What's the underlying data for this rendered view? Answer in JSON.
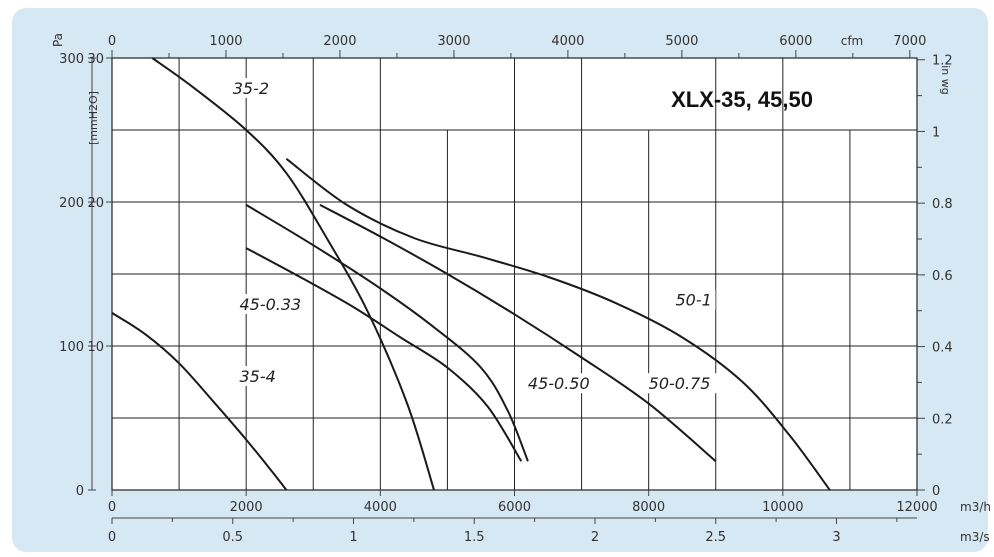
{
  "chart_data": {
    "type": "line",
    "title": "XLX-35, 45,50",
    "axes": {
      "left_primary": {
        "label": "Pa",
        "ticks": [
          "0",
          "100",
          "200",
          "300"
        ],
        "range": [
          0,
          300
        ]
      },
      "left_secondary": {
        "label": "[mmH2O]",
        "ticks": [
          "10",
          "20",
          "30"
        ],
        "range": [
          0,
          30
        ]
      },
      "right": {
        "label": "in wg",
        "ticks": [
          "0",
          "0.2",
          "0.4",
          "0.6",
          "0.8",
          "1",
          "1.2"
        ],
        "range": [
          0,
          1.2
        ]
      },
      "top": {
        "label": "cfm",
        "ticks": [
          "0",
          "1000",
          "2000",
          "3000",
          "4000",
          "5000",
          "6000",
          "7000"
        ],
        "range": [
          0,
          7000
        ]
      },
      "bottom": {
        "label": "m3/h",
        "ticks": [
          "0",
          "2000",
          "4000",
          "6000",
          "8000",
          "10000",
          "12000"
        ],
        "range": [
          0,
          12000
        ]
      },
      "bottom_secondary": {
        "label": "m3/s",
        "ticks": [
          "0",
          "0.5",
          "1",
          "1.5",
          "2",
          "2.5",
          "3"
        ],
        "range": [
          0,
          3.33
        ]
      }
    },
    "grid": true,
    "series": [
      {
        "name": "35-2",
        "label_at": [
          1800,
          275
        ],
        "x": [
          600,
          1200,
          2000,
          2600,
          3200,
          3800,
          4400,
          4800
        ],
        "y": [
          300,
          280,
          250,
          220,
          175,
          125,
          60,
          0
        ]
      },
      {
        "name": "35-4",
        "label_at": [
          1900,
          75
        ],
        "x": [
          0,
          500,
          1000,
          1500,
          2000,
          2400,
          2600
        ],
        "y": [
          123,
          108,
          88,
          62,
          35,
          12,
          0
        ]
      },
      {
        "name": "45-0.33",
        "label_at": [
          1900,
          125
        ],
        "x": [
          2000,
          2800,
          3600,
          4300,
          5000,
          5600,
          6100
        ],
        "y": [
          168,
          148,
          127,
          106,
          85,
          58,
          20
        ]
      },
      {
        "name": "45-0.50",
        "label_at": [
          6200,
          70
        ],
        "x": [
          2000,
          3000,
          4000,
          4800,
          5500,
          5900,
          6200
        ],
        "y": [
          198,
          170,
          140,
          113,
          85,
          55,
          20
        ]
      },
      {
        "name": "50-0.75",
        "label_at": [
          8000,
          70
        ],
        "x": [
          3100,
          4000,
          5000,
          6000,
          7000,
          8000,
          9000
        ],
        "y": [
          198,
          176,
          150,
          122,
          92,
          60,
          20
        ]
      },
      {
        "name": "50-1",
        "label_at": [
          8400,
          128
        ],
        "x": [
          2600,
          3500,
          4500,
          5500,
          6500,
          7500,
          8500,
          9400,
          10100,
          10700
        ],
        "y": [
          230,
          198,
          175,
          162,
          148,
          130,
          106,
          75,
          38,
          0
        ]
      }
    ]
  }
}
